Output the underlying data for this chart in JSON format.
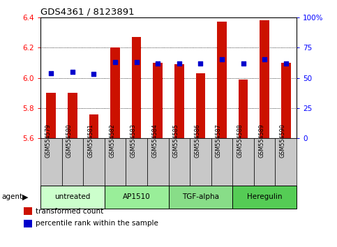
{
  "title": "GDS4361 / 8123891",
  "samples": [
    "GSM554579",
    "GSM554580",
    "GSM554581",
    "GSM554582",
    "GSM554583",
    "GSM554584",
    "GSM554585",
    "GSM554586",
    "GSM554587",
    "GSM554588",
    "GSM554589",
    "GSM554590"
  ],
  "bar_values": [
    5.9,
    5.9,
    5.76,
    6.2,
    6.27,
    6.1,
    6.09,
    6.03,
    6.37,
    5.99,
    6.38,
    6.1
  ],
  "percentile_values": [
    54,
    55,
    53,
    63,
    63,
    62,
    62,
    62,
    65,
    62,
    65,
    62
  ],
  "ylim": [
    5.6,
    6.4
  ],
  "y2lim": [
    0,
    100
  ],
  "yticks": [
    5.6,
    5.8,
    6.0,
    6.2,
    6.4
  ],
  "y2ticks": [
    0,
    25,
    50,
    75,
    100
  ],
  "bar_color": "#cc1100",
  "dot_color": "#0000cc",
  "bar_bottom": 5.6,
  "agent_groups": [
    {
      "label": "untreated",
      "start": 0,
      "end": 3,
      "color": "#ccffcc"
    },
    {
      "label": "AP1510",
      "start": 3,
      "end": 6,
      "color": "#99ee99"
    },
    {
      "label": "TGF-alpha",
      "start": 6,
      "end": 9,
      "color": "#88dd88"
    },
    {
      "label": "Heregulin",
      "start": 9,
      "end": 12,
      "color": "#55cc55"
    }
  ],
  "bg_tick": "#c8c8c8",
  "legend_bar_label": "transformed count",
  "legend_dot_label": "percentile rank within the sample"
}
